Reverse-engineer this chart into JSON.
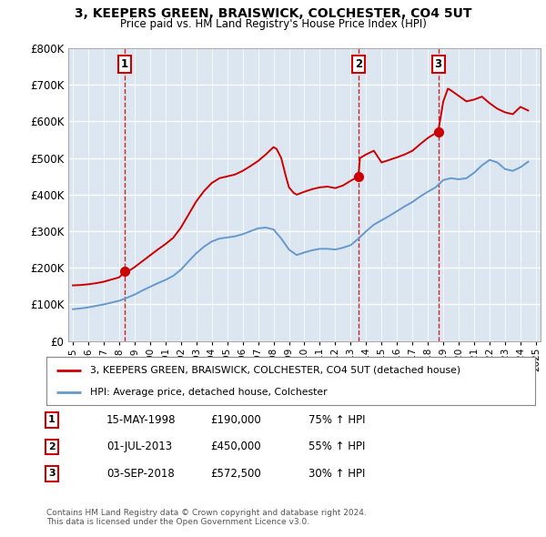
{
  "title": "3, KEEPERS GREEN, BRAISWICK, COLCHESTER, CO4 5UT",
  "subtitle": "Price paid vs. HM Land Registry's House Price Index (HPI)",
  "property_label": "3, KEEPERS GREEN, BRAISWICK, COLCHESTER, CO4 5UT (detached house)",
  "hpi_label": "HPI: Average price, detached house, Colchester",
  "sales": [
    {
      "num": 1,
      "date_str": "15-MAY-1998",
      "price": 190000,
      "pct": "75%",
      "x": 1998.37
    },
    {
      "num": 2,
      "date_str": "01-JUL-2013",
      "price": 450000,
      "pct": "55%",
      "x": 2013.5
    },
    {
      "num": 3,
      "date_str": "03-SEP-2018",
      "price": 572500,
      "pct": "30%",
      "x": 2018.67
    }
  ],
  "footer1": "Contains HM Land Registry data © Crown copyright and database right 2024.",
  "footer2": "This data is licensed under the Open Government Licence v3.0.",
  "red_color": "#cc0000",
  "blue_color": "#6699cc",
  "plot_bg": "#dce6f0",
  "ylim": [
    0,
    800000
  ],
  "xlim_start": 1994.7,
  "xlim_end": 2025.3,
  "hpi_data_x": [
    1995.0,
    1995.5,
    1996.0,
    1996.5,
    1997.0,
    1997.5,
    1998.0,
    1998.5,
    1999.0,
    1999.5,
    2000.0,
    2000.5,
    2001.0,
    2001.5,
    2002.0,
    2002.5,
    2003.0,
    2003.5,
    2004.0,
    2004.5,
    2005.0,
    2005.5,
    2006.0,
    2006.5,
    2007.0,
    2007.5,
    2008.0,
    2008.5,
    2009.0,
    2009.5,
    2010.0,
    2010.5,
    2011.0,
    2011.5,
    2012.0,
    2012.5,
    2013.0,
    2013.5,
    2014.0,
    2014.5,
    2015.0,
    2015.5,
    2016.0,
    2016.5,
    2017.0,
    2017.5,
    2018.0,
    2018.5,
    2019.0,
    2019.5,
    2020.0,
    2020.5,
    2021.0,
    2021.5,
    2022.0,
    2022.5,
    2023.0,
    2023.5,
    2024.0,
    2024.5
  ],
  "hpi_data_y": [
    87000,
    89000,
    92000,
    96000,
    100000,
    105000,
    110000,
    118000,
    127000,
    138000,
    148000,
    158000,
    167000,
    178000,
    195000,
    218000,
    240000,
    258000,
    272000,
    280000,
    283000,
    286000,
    292000,
    300000,
    308000,
    310000,
    305000,
    280000,
    250000,
    235000,
    242000,
    248000,
    252000,
    252000,
    250000,
    255000,
    262000,
    280000,
    300000,
    318000,
    330000,
    342000,
    355000,
    368000,
    380000,
    395000,
    408000,
    420000,
    440000,
    445000,
    442000,
    445000,
    460000,
    480000,
    495000,
    488000,
    470000,
    465000,
    475000,
    490000
  ],
  "red_data_x": [
    1995.0,
    1995.5,
    1996.0,
    1996.5,
    1997.0,
    1997.5,
    1998.0,
    1998.37,
    1998.5,
    1999.0,
    1999.5,
    2000.0,
    2000.5,
    2001.0,
    2001.5,
    2002.0,
    2002.5,
    2003.0,
    2003.5,
    2004.0,
    2004.5,
    2005.0,
    2005.5,
    2006.0,
    2006.5,
    2007.0,
    2007.5,
    2008.0,
    2008.2,
    2008.5,
    2008.8,
    2009.0,
    2009.3,
    2009.5,
    2010.0,
    2010.5,
    2011.0,
    2011.5,
    2012.0,
    2012.5,
    2013.0,
    2013.5,
    2013.6,
    2014.0,
    2014.5,
    2015.0,
    2015.5,
    2016.0,
    2016.5,
    2017.0,
    2017.5,
    2018.0,
    2018.5,
    2018.67,
    2019.0,
    2019.3,
    2019.5,
    2020.0,
    2020.5,
    2021.0,
    2021.5,
    2022.0,
    2022.5,
    2023.0,
    2023.5,
    2024.0,
    2024.5
  ],
  "red_data_y": [
    152000,
    153000,
    155000,
    158000,
    162000,
    168000,
    174000,
    190000,
    188000,
    202000,
    218000,
    234000,
    250000,
    265000,
    282000,
    310000,
    346000,
    382000,
    410000,
    432000,
    445000,
    450000,
    455000,
    465000,
    478000,
    492000,
    510000,
    530000,
    525000,
    500000,
    450000,
    420000,
    405000,
    400000,
    408000,
    415000,
    420000,
    422000,
    418000,
    425000,
    438000,
    450000,
    500000,
    510000,
    520000,
    488000,
    495000,
    502000,
    510000,
    520000,
    538000,
    555000,
    568000,
    572500,
    655000,
    690000,
    685000,
    670000,
    655000,
    660000,
    668000,
    650000,
    635000,
    625000,
    620000,
    640000,
    630000
  ]
}
